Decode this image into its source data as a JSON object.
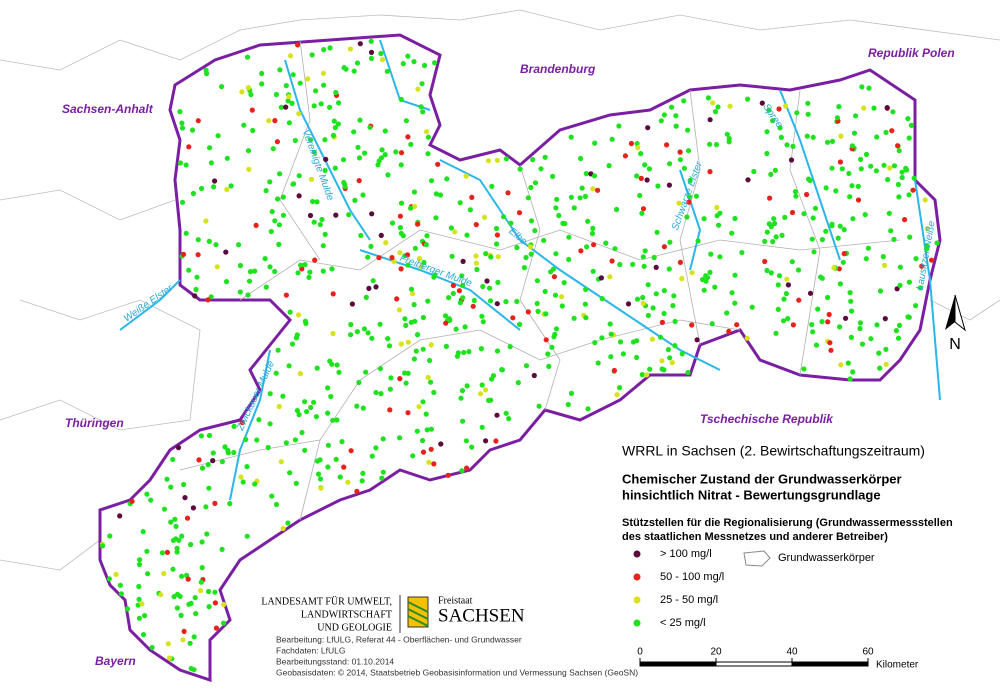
{
  "map": {
    "regions": [
      "Brandenburg",
      "Republik Polen",
      "Sachsen-Anhalt",
      "Thüringen",
      "Tschechische Republik",
      "Bayern"
    ],
    "rivers": [
      "Vereinigte Mulde",
      "Elbe",
      "Freiberger Mulde",
      "Weiße Elster",
      "Zwickauer Mulde",
      "Schwarze Elster",
      "Spree",
      "Lausitzer Neiße"
    ],
    "north": "N"
  },
  "legend": {
    "title": "WRRL in Sachsen (2. Bewirtschaftungszeitraum)",
    "heading": [
      "Chemischer Zustand der Grundwasserkörper",
      "hinsichtlich Nitrat - Bewertungsgrundlage"
    ],
    "subheading": [
      "Stützstellen für die Regionalisierung (Grundwassermessstellen",
      "des staatlichen Messnetzes und anderer Betreiber)"
    ],
    "items": [
      {
        "label": "> 100 mg/l",
        "color": "#5c0a3c"
      },
      {
        "label": "50 - 100 mg/l",
        "color": "#e8211b"
      },
      {
        "label": "25 - 50 mg/l",
        "color": "#d6e21a"
      },
      {
        "label": "< 25 mg/l",
        "color": "#1fe21f"
      }
    ],
    "body_label": "Grundwasserkörper"
  },
  "credits": {
    "org": [
      "LANDESAMT FÜR UMWELT,",
      "LANDWIRTSCHAFT",
      "UND GEOLOGIE"
    ],
    "state": [
      "Freistaat",
      "SACHSEN"
    ],
    "lines": [
      "Bearbeitung: LfULG, Referat  44 - Oberflächen- und Grundwasser",
      "Fachdaten: LfULG",
      "Bearbeitungsstand: 01.10.2014",
      "Geobasisdaten: © 2014, Staatsbetrieb Geobasisinformation und Vermessung Sachsen (GeoSN)"
    ]
  },
  "scale": {
    "ticks": [
      0,
      20,
      40,
      60
    ],
    "unit": "Kilometer"
  }
}
